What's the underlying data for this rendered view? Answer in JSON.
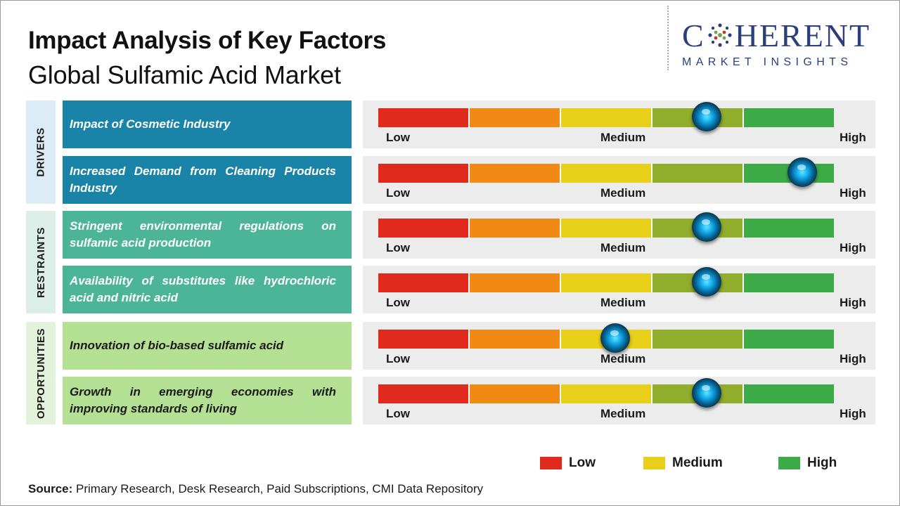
{
  "header": {
    "title": "Impact Analysis of Key Factors",
    "subtitle": "Global Sulfamic Acid Market"
  },
  "logo": {
    "word_left": "C",
    "word_right": "HERENT",
    "tagline": "MARKET INSIGHTS",
    "color": "#2b3f7a"
  },
  "categories": [
    {
      "label": "DRIVERS",
      "color": "#dcecf6"
    },
    {
      "label": "RESTRAINTS",
      "color": "#dceee8"
    },
    {
      "label": "OPPORTUNITIES",
      "color": "#e3f2da"
    }
  ],
  "scale": {
    "low_label": "Low",
    "medium_label": "Medium",
    "high_label": "High",
    "segment_colors": [
      "#e02a1e",
      "#f08a14",
      "#e8cf1a",
      "#90ad2c",
      "#3daa48"
    ]
  },
  "chart_data": {
    "type": "table",
    "scale_range": [
      0,
      100
    ],
    "rows": [
      {
        "category": "DRIVERS",
        "factor": "Impact of Cosmetic Industry",
        "impact": 72,
        "color": "#1a83a8"
      },
      {
        "category": "DRIVERS",
        "factor": "Increased Demand from Cleaning Products Industry",
        "impact": 93,
        "color": "#1a83a8"
      },
      {
        "category": "RESTRAINTS",
        "factor": "Stringent environmental regulations on sulfamic acid production",
        "impact": 72,
        "color": "#4db597"
      },
      {
        "category": "RESTRAINTS",
        "factor": "Availability of substitutes like hydrochloric acid and nitric acid",
        "impact": 72,
        "color": "#4db597"
      },
      {
        "category": "OPPORTUNITIES",
        "factor": "Innovation of bio-based sulfamic acid",
        "impact": 52,
        "color": "#b3e092"
      },
      {
        "category": "OPPORTUNITIES",
        "factor": "Growth in emerging economies with improving standards of living",
        "impact": 72,
        "color": "#b3e092"
      }
    ]
  },
  "legend": [
    {
      "label": "Low",
      "color": "#e02a1e"
    },
    {
      "label": "Medium",
      "color": "#e8cf1a"
    },
    {
      "label": "High",
      "color": "#3daa48"
    }
  ],
  "footer": {
    "source_label": "Source:",
    "source_text": " Primary Research, Desk Research, Paid Subscriptions, CMI Data Repository"
  }
}
